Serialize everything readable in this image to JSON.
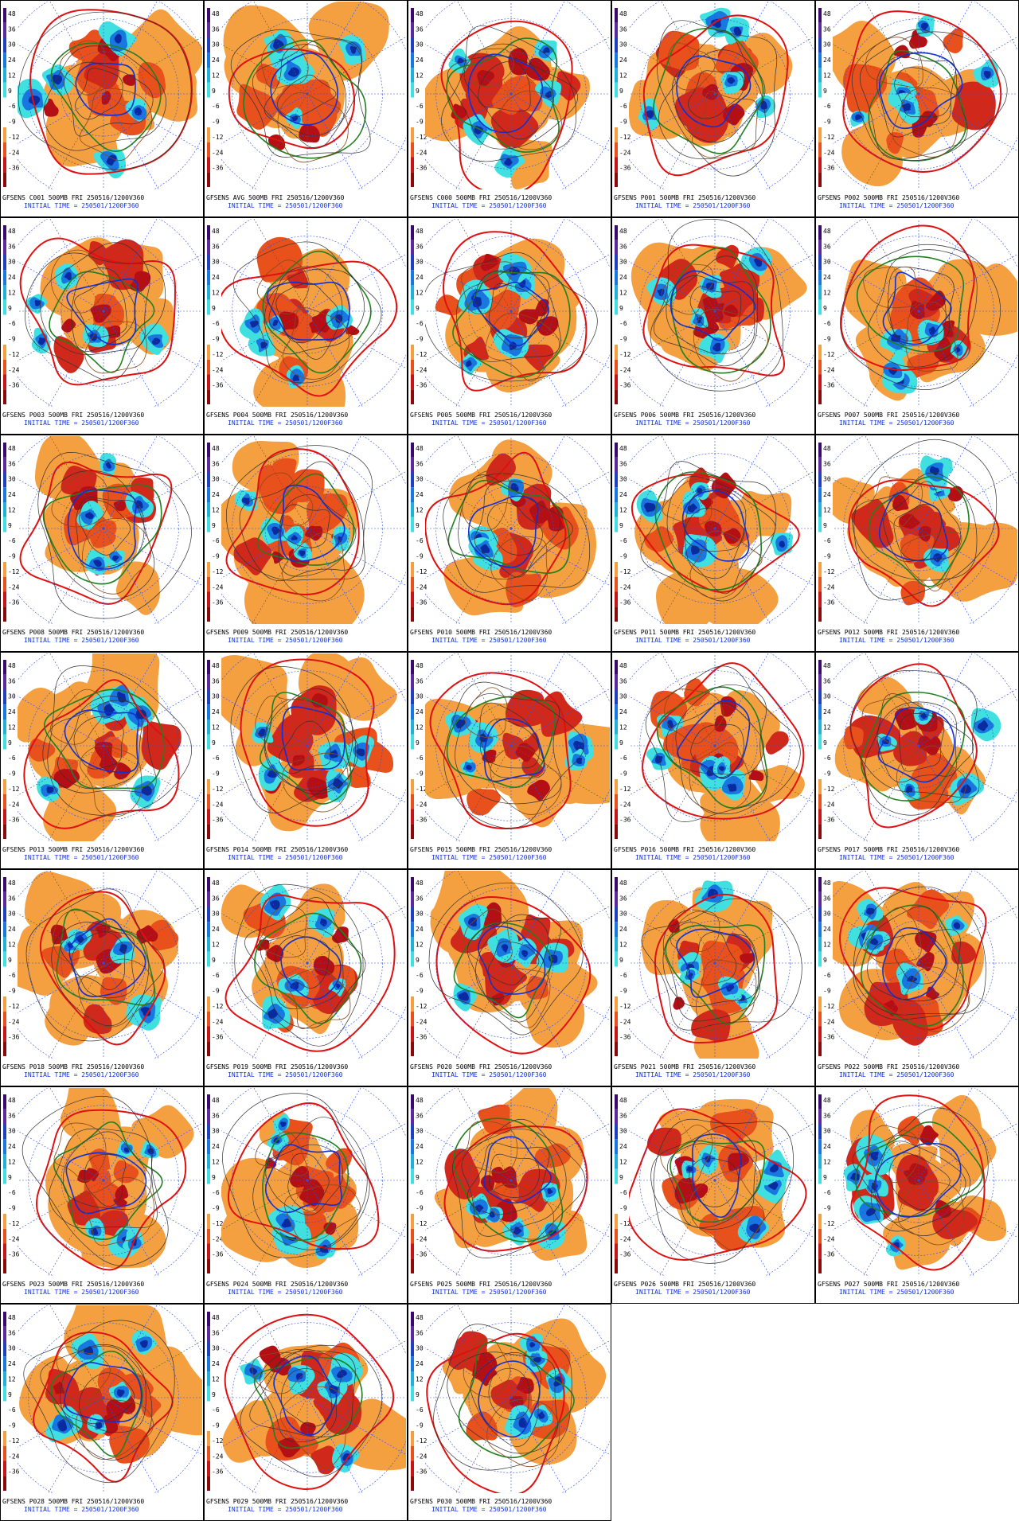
{
  "colorbar_labels": [
    "48",
    "36",
    "30",
    "24",
    "12",
    "9",
    "-6",
    "-9",
    "-12",
    "-24",
    "-36"
  ],
  "panels": [
    {
      "title": "GFSENS C001 500MB FRI 250516/1200V360",
      "initial_time": "INITIAL TIME = 250501/1200F360"
    },
    {
      "title": "GFSENS AVG 500MB FRI 250516/1200V360",
      "initial_time": "INITIAL TIME = 250501/1200F360"
    },
    {
      "title": "GFSENS C000 500MB FRI 250516/1200V360",
      "initial_time": "INITIAL TIME = 250501/1200F360"
    },
    {
      "title": "GFSENS P001 500MB FRI 250516/1200V360",
      "initial_time": "INITIAL TIME = 250501/1200F360"
    },
    {
      "title": "GFSENS P002 500MB FRI 250516/1200V360",
      "initial_time": "INITIAL TIME = 250501/1200F360"
    },
    {
      "title": "GFSENS P003 500MB FRI 250516/1200V360",
      "initial_time": "INITIAL TIME = 250501/1200F360"
    },
    {
      "title": "GFSENS P004 500MB FRI 250516/1200V360",
      "initial_time": "INITIAL TIME = 250501/1200F360"
    },
    {
      "title": "GFSENS P005 500MB FRI 250516/1200V360",
      "initial_time": "INITIAL TIME = 250501/1200F360"
    },
    {
      "title": "GFSENS P006 500MB FRI 250516/1200V360",
      "initial_time": "INITIAL TIME = 250501/1200F360"
    },
    {
      "title": "GFSENS P007 500MB FRI 250516/1200V360",
      "initial_time": "INITIAL TIME = 250501/1200F360"
    },
    {
      "title": "GFSENS P008 500MB FRI 250516/1200V360",
      "initial_time": "INITIAL TIME = 250501/1200F360"
    },
    {
      "title": "GFSENS P009 500MB FRI 250516/1200V360",
      "initial_time": "INITIAL TIME = 250501/1200F360"
    },
    {
      "title": "GFSENS P010 500MB FRI 250516/1200V360",
      "initial_time": "INITIAL TIME = 250501/1200F360"
    },
    {
      "title": "GFSENS P011 500MB FRI 250516/1200V360",
      "initial_time": "INITIAL TIME = 250501/1200F360"
    },
    {
      "title": "GFSENS P012 500MB FRI 250516/1200V360",
      "initial_time": "INITIAL TIME = 250501/1200F360"
    },
    {
      "title": "GFSENS P013 500MB FRI 250516/1200V360",
      "initial_time": "INITIAL TIME = 250501/1200F360"
    },
    {
      "title": "GFSENS P014 500MB FRI 250516/1200V360",
      "initial_time": "INITIAL TIME = 250501/1200F360"
    },
    {
      "title": "GFSENS P015 500MB FRI 250516/1200V360",
      "initial_time": "INITIAL TIME = 250501/1200F360"
    },
    {
      "title": "GFSENS P016 500MB FRI 250516/1200V360",
      "initial_time": "INITIAL TIME = 250501/1200F360"
    },
    {
      "title": "GFSENS P017 500MB FRI 250516/1200V360",
      "initial_time": "INITIAL TIME = 250501/1200F360"
    },
    {
      "title": "GFSENS P018 500MB FRI 250516/1200V360",
      "initial_time": "INITIAL TIME = 250501/1200F360"
    },
    {
      "title": "GFSENS P019 500MB FRI 250516/1200V360",
      "initial_time": "INITIAL TIME = 250501/1200F360"
    },
    {
      "title": "GFSENS P020 500MB FRI 250516/1200V360",
      "initial_time": "INITIAL TIME = 250501/1200F360"
    },
    {
      "title": "GFSENS P021 500MB FRI 250516/1200V360",
      "initial_time": "INITIAL TIME = 250501/1200F360"
    },
    {
      "title": "GFSENS P022 500MB FRI 250516/1200V360",
      "initial_time": "INITIAL TIME = 250501/1200F360"
    },
    {
      "title": "GFSENS P023 500MB FRI 250516/1200V360",
      "initial_time": "INITIAL TIME = 250501/1200F360"
    },
    {
      "title": "GFSENS P024 500MB FRI 250516/1200V360",
      "initial_time": "INITIAL TIME = 250501/1200F360"
    },
    {
      "title": "GFSENS P025 500MB FRI 250516/1200V360",
      "initial_time": "INITIAL TIME = 250501/1200F360"
    },
    {
      "title": "GFSENS P026 500MB FRI 250516/1200V360",
      "initial_time": "INITIAL TIME = 250501/1200F360"
    },
    {
      "title": "GFSENS P027 500MB FRI 250516/1200V360",
      "initial_time": "INITIAL TIME = 250501/1200F360"
    },
    {
      "title": "GFSENS P028 500MB FRI 250516/1200V360",
      "initial_time": "INITIAL TIME = 250501/1200F360"
    },
    {
      "title": "GFSENS P029 500MB FRI 250516/1200V360",
      "initial_time": "INITIAL TIME = 250501/1200F360"
    },
    {
      "title": "GFSENS P030 500MB FRI 250516/1200V360",
      "initial_time": "INITIAL TIME = 250501/1200F360"
    }
  ]
}
